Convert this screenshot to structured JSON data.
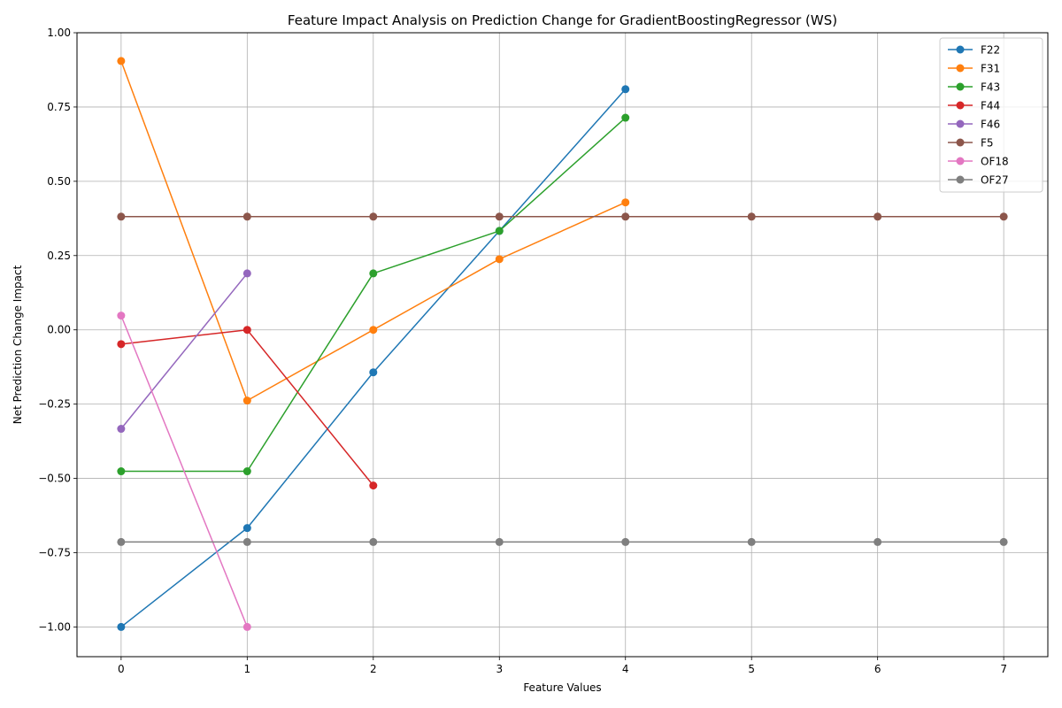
{
  "chart_data": {
    "type": "line",
    "title": "Feature Impact Analysis on Prediction Change for GradientBoostingRegressor (WS)",
    "xlabel": "Feature Values",
    "ylabel": "Net Prediction Change Impact",
    "xlim": [
      -0.35,
      7.35
    ],
    "ylim": [
      -1.1,
      1.0
    ],
    "xticks": [
      "0",
      "1",
      "2",
      "3",
      "4",
      "5",
      "6",
      "7"
    ],
    "yticks": [
      "1.00",
      "0.75",
      "0.50",
      "0.25",
      "0.00",
      "−0.25",
      "−0.50",
      "−0.75",
      "−1.00"
    ],
    "ytick_values": [
      1.0,
      0.75,
      0.5,
      0.25,
      0.0,
      -0.25,
      -0.5,
      -0.75,
      -1.0
    ],
    "grid": true,
    "legend_position": "top-right",
    "series": [
      {
        "name": "F22",
        "color": "#1f77b4",
        "x": [
          0,
          1,
          2,
          3,
          4
        ],
        "y": [
          -1.0,
          -0.667,
          -0.143,
          0.333,
          0.81
        ]
      },
      {
        "name": "F31",
        "color": "#ff7f0e",
        "x": [
          0,
          1,
          2,
          3,
          4
        ],
        "y": [
          0.905,
          -0.238,
          0.0,
          0.238,
          0.429
        ]
      },
      {
        "name": "F43",
        "color": "#2ca02c",
        "x": [
          0,
          1,
          2,
          3,
          4
        ],
        "y": [
          -0.476,
          -0.476,
          0.19,
          0.333,
          0.714
        ]
      },
      {
        "name": "F44",
        "color": "#d62728",
        "x": [
          0,
          1,
          2
        ],
        "y": [
          -0.048,
          0.0,
          -0.524
        ]
      },
      {
        "name": "F46",
        "color": "#9467bd",
        "x": [
          0,
          1
        ],
        "y": [
          -0.333,
          0.19
        ]
      },
      {
        "name": "F5",
        "color": "#8c564b",
        "x": [
          0,
          1,
          2,
          3,
          4,
          5,
          6,
          7
        ],
        "y": [
          0.381,
          0.381,
          0.381,
          0.381,
          0.381,
          0.381,
          0.381,
          0.381
        ]
      },
      {
        "name": "OF18",
        "color": "#e377c2",
        "x": [
          0,
          1
        ],
        "y": [
          0.048,
          -1.0
        ]
      },
      {
        "name": "OF27",
        "color": "#7f7f7f",
        "x": [
          0,
          1,
          2,
          3,
          4,
          5,
          6,
          7
        ],
        "y": [
          -0.714,
          -0.714,
          -0.714,
          -0.714,
          -0.714,
          -0.714,
          -0.714,
          -0.714
        ]
      }
    ]
  }
}
